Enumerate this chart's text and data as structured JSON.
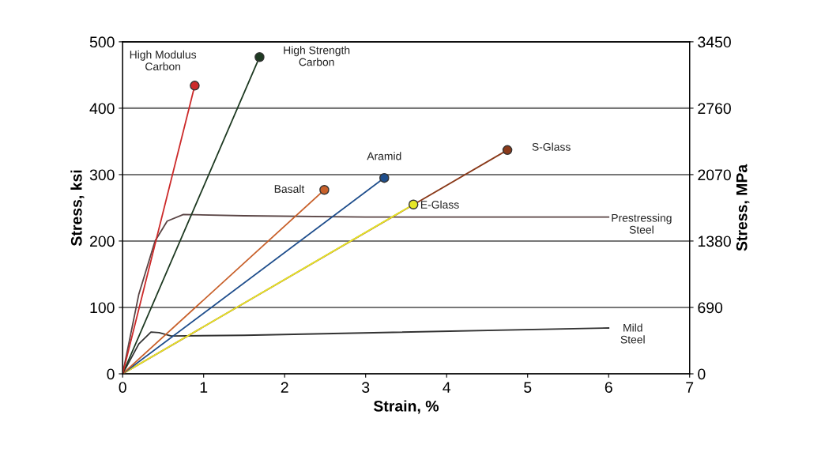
{
  "chart_data": {
    "type": "line",
    "xlabel": "Strain, %",
    "ylabel": "Stress, ksi",
    "y2label": "Stress, MPa",
    "xlim": [
      0,
      7
    ],
    "xticks": [
      0,
      1,
      2,
      3,
      4,
      5,
      6,
      7
    ],
    "ylim": [
      0,
      500
    ],
    "yticks": [
      0,
      100,
      200,
      300,
      400,
      500
    ],
    "y2lim": [
      0,
      3450
    ],
    "y2ticks": [
      0,
      690,
      1380,
      2070,
      2760,
      3450
    ],
    "grid": "y",
    "legend": false,
    "series": [
      {
        "name": "High Modulus Carbon",
        "color": "#cc2a2a",
        "marker": "circle",
        "x": [
          0,
          0.89
        ],
        "values": [
          0,
          434
        ]
      },
      {
        "name": "High Strength Carbon",
        "color": "#1e3a22",
        "marker": "circle",
        "x": [
          0,
          1.69
        ],
        "values": [
          0,
          477
        ]
      },
      {
        "name": "Basalt",
        "color": "#c8602a",
        "marker": "circle",
        "x": [
          0,
          2.49
        ],
        "values": [
          0,
          277
        ]
      },
      {
        "name": "Aramid",
        "color": "#1f4e8c",
        "marker": "circle",
        "x": [
          0,
          3.23
        ],
        "values": [
          0,
          295
        ]
      },
      {
        "name": "E-Glass",
        "color": "#e6e628",
        "marker": "circle",
        "x": [
          0,
          3.59
        ],
        "values": [
          0,
          255
        ]
      },
      {
        "name": "S-Glass",
        "color": "#8a3a1a",
        "marker": "circle",
        "x": [
          0,
          4.75
        ],
        "values": [
          0,
          337
        ]
      },
      {
        "name": "Prestressing Steel",
        "color": "#5a4545",
        "marker": "none",
        "x": [
          0,
          0.2,
          0.4,
          0.55,
          0.75,
          1.5,
          3,
          6
        ],
        "values": [
          0,
          120,
          200,
          230,
          240,
          238,
          236,
          236
        ]
      },
      {
        "name": "Mild Steel",
        "color": "#333333",
        "marker": "none",
        "x": [
          0,
          0.2,
          0.35,
          0.45,
          0.6,
          1.5,
          6
        ],
        "values": [
          0,
          45,
          63,
          62,
          57,
          58,
          69
        ]
      }
    ]
  }
}
